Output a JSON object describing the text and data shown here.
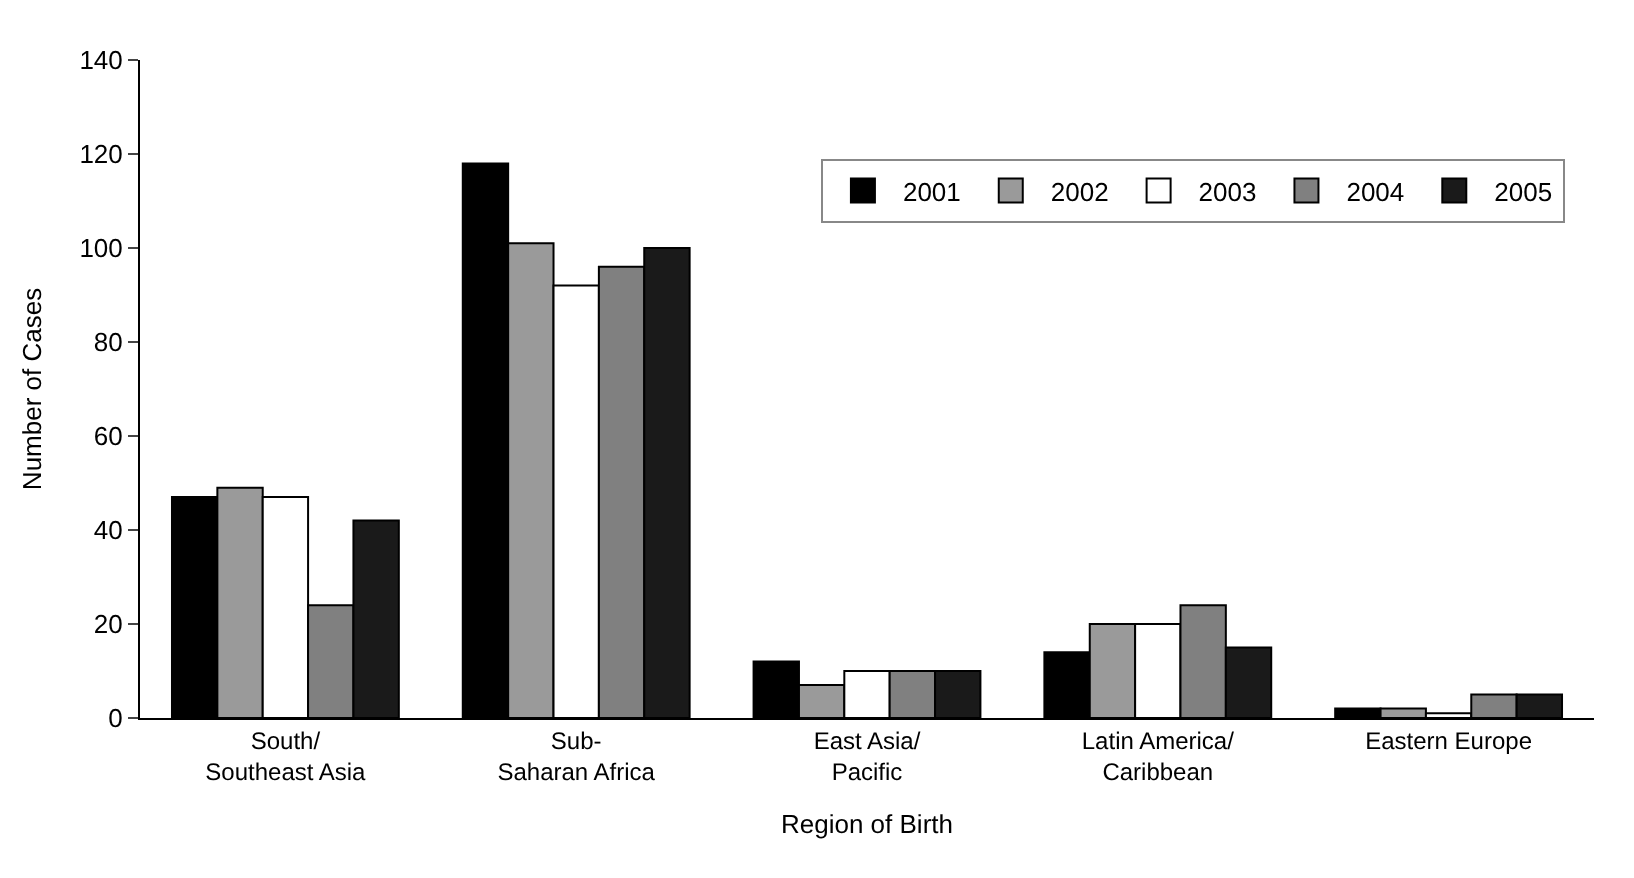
{
  "chart_data": {
    "type": "bar",
    "xlabel": "Region of Birth",
    "ylabel": "Number of Cases",
    "categories": [
      "South/ Southeast Asia",
      "Sub- Saharan Africa",
      "East Asia/ Pacific",
      "Latin America/ Caribbean",
      "Eastern Europe"
    ],
    "series": [
      {
        "name": "2001",
        "color": "#000000",
        "values": [
          47,
          118,
          12,
          14,
          2
        ]
      },
      {
        "name": "2002",
        "color": "#9a9a9a",
        "values": [
          49,
          101,
          7,
          20,
          2
        ]
      },
      {
        "name": "2003",
        "color": "#ffffff",
        "values": [
          47,
          92,
          10,
          20,
          1
        ]
      },
      {
        "name": "2004",
        "color": "#808080",
        "values": [
          24,
          96,
          10,
          24,
          5
        ]
      },
      {
        "name": "2005",
        "color": "#1a1a1a",
        "values": [
          42,
          100,
          10,
          15,
          5
        ]
      }
    ],
    "ylim": [
      0,
      140
    ],
    "yticks": [
      0,
      20,
      40,
      60,
      80,
      100,
      120,
      140
    ],
    "legend": "top right"
  }
}
